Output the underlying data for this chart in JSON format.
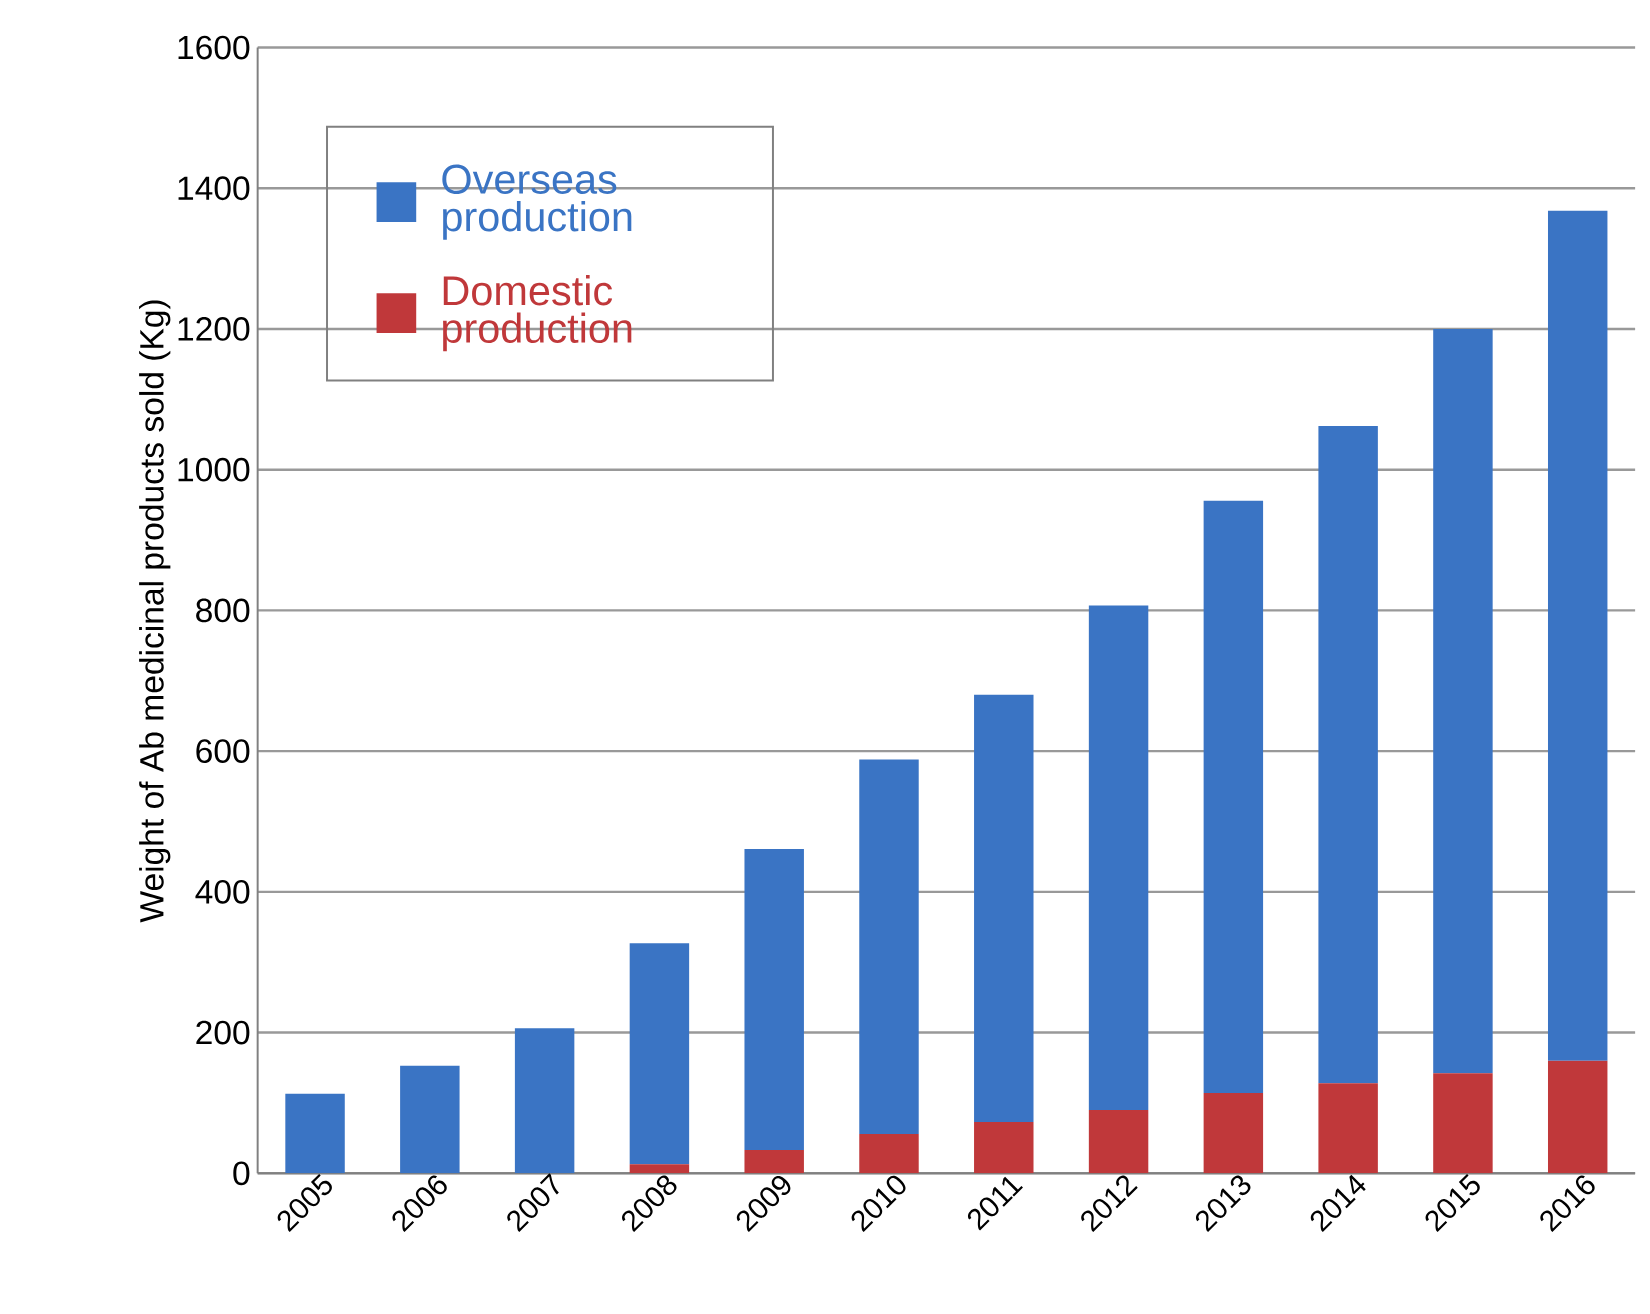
{
  "chart_data": {
    "type": "bar",
    "stacked": true,
    "ylabel": "Weight of Ab medicinal products sold (Kg)",
    "categories": [
      "2005",
      "2006",
      "2007",
      "2008",
      "2009",
      "2010",
      "2011",
      "2012",
      "2013",
      "2014",
      "2015",
      "2016"
    ],
    "series": [
      {
        "name": "Domestic production",
        "color": "#c0383a",
        "values": [
          0,
          0,
          0,
          13,
          33,
          56,
          73,
          90,
          114,
          128,
          142,
          160
        ]
      },
      {
        "name": "Overseas production",
        "color": "#3a74c4",
        "values": [
          113,
          153,
          206,
          314,
          428,
          532,
          607,
          717,
          842,
          934,
          1058,
          1208
        ]
      }
    ],
    "ylim": [
      0,
      1600
    ],
    "yticks": [
      0,
      200,
      400,
      600,
      800,
      1000,
      1200,
      1400,
      1600
    ],
    "grid": "y",
    "legend": "top left"
  }
}
